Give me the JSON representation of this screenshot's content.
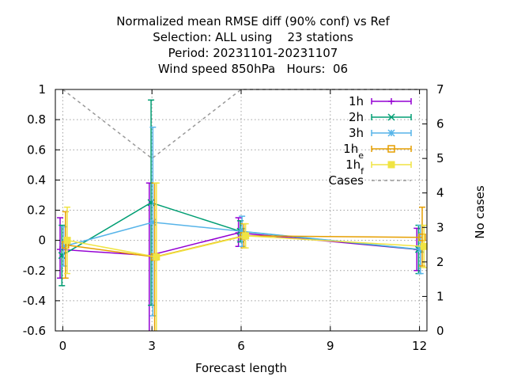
{
  "chart_data": {
    "type": "line",
    "title": [
      "Normalized mean RMSE diff (90% conf) vs Ref",
      "Selection: ALL using    23 stations",
      "Period: 20231101-20231107",
      "Wind speed 850hPa   Hours:  06"
    ],
    "xlabel": "Forecast length",
    "ylabel": "",
    "y2label": "No cases",
    "xlim": [
      -0.25,
      12.25
    ],
    "ylim": [
      -0.6,
      1.0
    ],
    "y2lim": [
      0,
      7
    ],
    "x_ticks": [
      0,
      3,
      6,
      9,
      12
    ],
    "y_ticks": [
      1,
      0.8,
      0.6,
      0.4,
      0.2,
      0,
      -0.2,
      -0.4,
      -0.6
    ],
    "y_tick_labels": [
      "1",
      "0.8",
      "0.6",
      "0.4",
      "0.2",
      "0",
      "-0.2",
      "-0.4",
      "-0.6"
    ],
    "y2_ticks": [
      7,
      6,
      5,
      4,
      3,
      2,
      1,
      0
    ],
    "grid": true,
    "legend_position": "top-right",
    "series": [
      {
        "name": "1h",
        "sub": "",
        "color": "#9400d3",
        "marker": "plus",
        "points": [
          {
            "x": 0,
            "y": -0.06,
            "lo": -0.25,
            "hi": 0.15
          },
          {
            "x": 3,
            "y": -0.1,
            "lo": -0.6,
            "hi": 0.38
          },
          {
            "x": 6,
            "y": 0.05,
            "lo": -0.04,
            "hi": 0.15
          },
          {
            "x": 12,
            "y": -0.06,
            "lo": -0.2,
            "hi": 0.08
          }
        ]
      },
      {
        "name": "2h",
        "sub": "",
        "color": "#009e73",
        "marker": "x",
        "points": [
          {
            "x": 0,
            "y": -0.1,
            "lo": -0.3,
            "hi": 0.1
          },
          {
            "x": 3,
            "y": 0.25,
            "lo": -0.43,
            "hi": 0.93
          },
          {
            "x": 6,
            "y": 0.06,
            "lo": -0.01,
            "hi": 0.13
          },
          {
            "x": 12,
            "y": -0.06,
            "lo": -0.22,
            "hi": 0.1
          }
        ]
      },
      {
        "name": "3h",
        "sub": "",
        "color": "#56b4e9",
        "marker": "star",
        "points": [
          {
            "x": 0,
            "y": -0.04,
            "lo": -0.17,
            "hi": 0.09
          },
          {
            "x": 3,
            "y": 0.12,
            "lo": -0.5,
            "hi": 0.75
          },
          {
            "x": 6,
            "y": 0.06,
            "lo": -0.04,
            "hi": 0.16
          },
          {
            "x": 12,
            "y": -0.06,
            "lo": -0.22,
            "hi": 0.1
          }
        ]
      },
      {
        "name": "1h",
        "sub": "e",
        "color": "#e69f00",
        "marker": "square",
        "points": [
          {
            "x": 0,
            "y": -0.03,
            "lo": -0.25,
            "hi": 0.19
          },
          {
            "x": 3,
            "y": -0.11,
            "lo": -0.6,
            "hi": 0.38
          },
          {
            "x": 6,
            "y": 0.03,
            "lo": -0.05,
            "hi": 0.11
          },
          {
            "x": 12,
            "y": 0.02,
            "lo": -0.17,
            "hi": 0.22
          }
        ]
      },
      {
        "name": "1h",
        "sub": "f",
        "color": "#f0e442",
        "marker": "filled-square",
        "points": [
          {
            "x": 0,
            "y": 0.0,
            "lo": -0.22,
            "hi": 0.22
          },
          {
            "x": 3,
            "y": -0.11,
            "lo": -0.6,
            "hi": 0.38
          },
          {
            "x": 6,
            "y": 0.03,
            "lo": -0.05,
            "hi": 0.11
          },
          {
            "x": 12,
            "y": -0.04,
            "lo": -0.18,
            "hi": 0.1
          }
        ]
      }
    ],
    "cases": {
      "name": "Cases",
      "color": "#999999",
      "axis": "y2",
      "points": [
        {
          "x": 0,
          "y": 7
        },
        {
          "x": 3,
          "y": 5
        },
        {
          "x": 6,
          "y": 7
        },
        {
          "x": 12,
          "y": 7
        }
      ]
    }
  }
}
